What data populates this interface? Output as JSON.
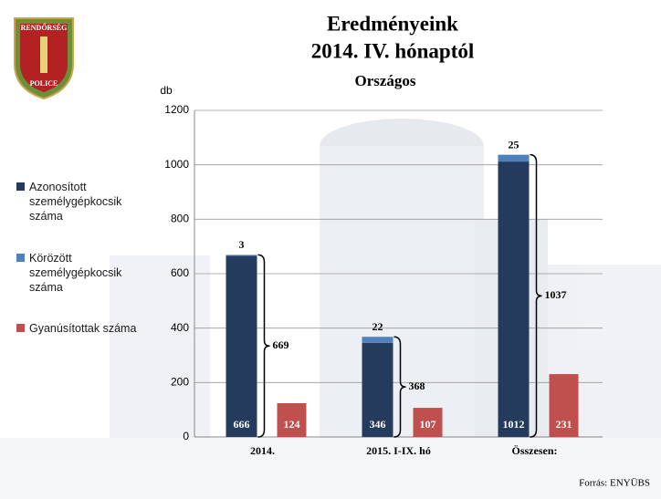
{
  "chart_data": {
    "type": "bar",
    "title": "Eredményeink",
    "subtitle": "2014. IV. hónaptól",
    "region": "Országos",
    "ylabel": "db",
    "source": "Forrás: ENYÜBS",
    "categories": [
      "2014.",
      "2015. I-IX. hó",
      "Összesen:"
    ],
    "series": [
      {
        "name": "Azonosított személygépkocsik száma",
        "color": "#243b5e",
        "values": [
          666,
          346,
          1012
        ]
      },
      {
        "name": "Körözött személygépkocsik száma",
        "color": "#4f81bd",
        "values": [
          3,
          22,
          25
        ]
      },
      {
        "name": "Gyanúsítottak száma",
        "color": "#c0504d",
        "values": [
          124,
          107,
          231
        ]
      }
    ],
    "brace_labels": [
      669,
      368,
      1037
    ],
    "ylim": [
      0,
      1200
    ],
    "yticks": [
      0,
      200,
      400,
      600,
      800,
      1000,
      1200
    ],
    "grid": true
  },
  "logo": {
    "top": "RENDŐRSÉG",
    "bottom": "POLICE"
  }
}
